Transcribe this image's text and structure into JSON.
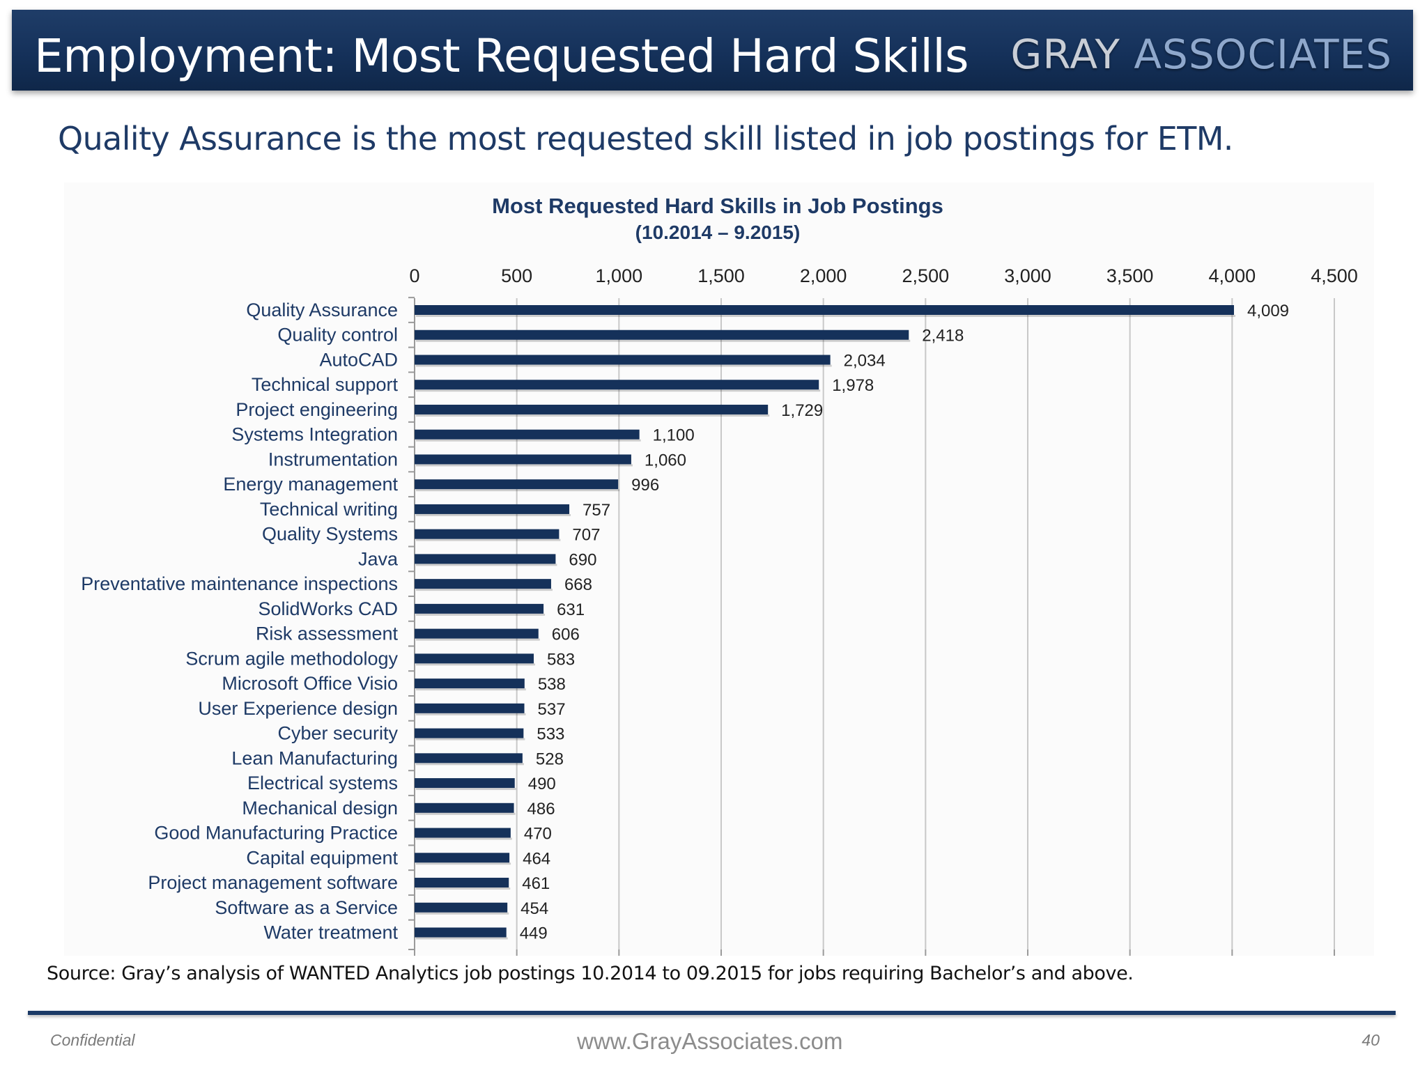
{
  "header": {
    "title": "Employment:  Most Requested Hard Skills",
    "brand_part1": "GRAY",
    "brand_part2": "ASSOCIATES"
  },
  "subtitle": "Quality Assurance is the most requested skill listed in job postings for ETM.",
  "chart_data": {
    "type": "bar",
    "orientation": "horizontal",
    "title": "Most Requested Hard Skills in Job Postings",
    "subtitle": "(10.2014 – 9.2015)",
    "xlim": [
      0,
      4500
    ],
    "x_ticks": [
      0,
      500,
      1000,
      1500,
      2000,
      2500,
      3000,
      3500,
      4000,
      4500
    ],
    "x_tick_labels": [
      "0",
      "500",
      "1,000",
      "1,500",
      "2,000",
      "2,500",
      "3,000",
      "3,500",
      "4,000",
      "4,500"
    ],
    "x_axis_position": "top",
    "grid": true,
    "bar_color": "#15315a",
    "categories": [
      "Quality Assurance",
      "Quality control",
      "AutoCAD",
      "Technical support",
      "Project engineering",
      "Systems Integration",
      "Instrumentation",
      "Energy management",
      "Technical writing",
      "Quality Systems",
      "Java",
      "Preventative maintenance inspections",
      "SolidWorks CAD",
      "Risk assessment",
      "Scrum agile methodology",
      "Microsoft Office Visio",
      "User Experience design",
      "Cyber security",
      "Lean Manufacturing",
      "Electrical systems",
      "Mechanical design",
      "Good Manufacturing Practice",
      "Capital equipment",
      "Project management software",
      "Software as a Service",
      "Water treatment"
    ],
    "values": [
      4009,
      2418,
      2034,
      1978,
      1729,
      1100,
      1060,
      996,
      757,
      707,
      690,
      668,
      631,
      606,
      583,
      538,
      537,
      533,
      528,
      490,
      486,
      470,
      464,
      461,
      454,
      449
    ],
    "value_labels": [
      "4,009",
      "2,418",
      "2,034",
      "1,978",
      "1,729",
      "1,100",
      "1,060",
      "996",
      "757",
      "707",
      "690",
      "668",
      "631",
      "606",
      "583",
      "538",
      "537",
      "533",
      "528",
      "490",
      "486",
      "470",
      "464",
      "461",
      "454",
      "449"
    ]
  },
  "source": "Source:  Gray’s analysis of WANTED Analytics job postings 10.2014 to 09.2015 for jobs requiring Bachelor’s and above.",
  "footer": {
    "left": "Confidential",
    "center": "www.GrayAssociates.com",
    "page": "40"
  }
}
